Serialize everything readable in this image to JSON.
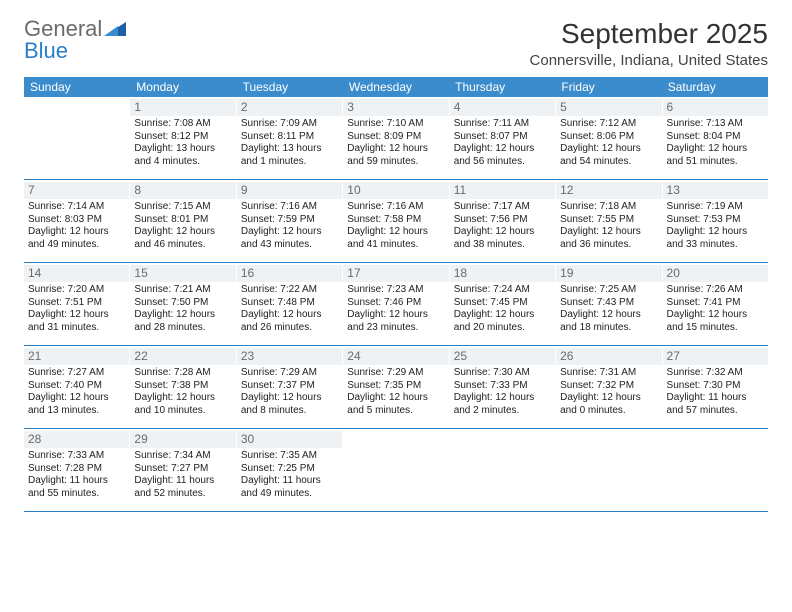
{
  "brand": {
    "part1": "General",
    "part2": "Blue"
  },
  "title": "September 2025",
  "location": "Connersville, Indiana, United States",
  "colors": {
    "header_bg": "#3b8ccc",
    "header_text": "#ffffff",
    "divider": "#2a7fc9",
    "daynum_bg": "#eef2f5",
    "daynum_text": "#6a6a6a",
    "body_text": "#222222",
    "title_text": "#333333",
    "logo_gray": "#6b6b6b",
    "logo_blue": "#2a7fc9"
  },
  "days_of_week": [
    "Sunday",
    "Monday",
    "Tuesday",
    "Wednesday",
    "Thursday",
    "Friday",
    "Saturday"
  ],
  "weeks": [
    [
      null,
      {
        "n": "1",
        "sr": "Sunrise: 7:08 AM",
        "ss": "Sunset: 8:12 PM",
        "d1": "Daylight: 13 hours",
        "d2": "and 4 minutes."
      },
      {
        "n": "2",
        "sr": "Sunrise: 7:09 AM",
        "ss": "Sunset: 8:11 PM",
        "d1": "Daylight: 13 hours",
        "d2": "and 1 minutes."
      },
      {
        "n": "3",
        "sr": "Sunrise: 7:10 AM",
        "ss": "Sunset: 8:09 PM",
        "d1": "Daylight: 12 hours",
        "d2": "and 59 minutes."
      },
      {
        "n": "4",
        "sr": "Sunrise: 7:11 AM",
        "ss": "Sunset: 8:07 PM",
        "d1": "Daylight: 12 hours",
        "d2": "and 56 minutes."
      },
      {
        "n": "5",
        "sr": "Sunrise: 7:12 AM",
        "ss": "Sunset: 8:06 PM",
        "d1": "Daylight: 12 hours",
        "d2": "and 54 minutes."
      },
      {
        "n": "6",
        "sr": "Sunrise: 7:13 AM",
        "ss": "Sunset: 8:04 PM",
        "d1": "Daylight: 12 hours",
        "d2": "and 51 minutes."
      }
    ],
    [
      {
        "n": "7",
        "sr": "Sunrise: 7:14 AM",
        "ss": "Sunset: 8:03 PM",
        "d1": "Daylight: 12 hours",
        "d2": "and 49 minutes."
      },
      {
        "n": "8",
        "sr": "Sunrise: 7:15 AM",
        "ss": "Sunset: 8:01 PM",
        "d1": "Daylight: 12 hours",
        "d2": "and 46 minutes."
      },
      {
        "n": "9",
        "sr": "Sunrise: 7:16 AM",
        "ss": "Sunset: 7:59 PM",
        "d1": "Daylight: 12 hours",
        "d2": "and 43 minutes."
      },
      {
        "n": "10",
        "sr": "Sunrise: 7:16 AM",
        "ss": "Sunset: 7:58 PM",
        "d1": "Daylight: 12 hours",
        "d2": "and 41 minutes."
      },
      {
        "n": "11",
        "sr": "Sunrise: 7:17 AM",
        "ss": "Sunset: 7:56 PM",
        "d1": "Daylight: 12 hours",
        "d2": "and 38 minutes."
      },
      {
        "n": "12",
        "sr": "Sunrise: 7:18 AM",
        "ss": "Sunset: 7:55 PM",
        "d1": "Daylight: 12 hours",
        "d2": "and 36 minutes."
      },
      {
        "n": "13",
        "sr": "Sunrise: 7:19 AM",
        "ss": "Sunset: 7:53 PM",
        "d1": "Daylight: 12 hours",
        "d2": "and 33 minutes."
      }
    ],
    [
      {
        "n": "14",
        "sr": "Sunrise: 7:20 AM",
        "ss": "Sunset: 7:51 PM",
        "d1": "Daylight: 12 hours",
        "d2": "and 31 minutes."
      },
      {
        "n": "15",
        "sr": "Sunrise: 7:21 AM",
        "ss": "Sunset: 7:50 PM",
        "d1": "Daylight: 12 hours",
        "d2": "and 28 minutes."
      },
      {
        "n": "16",
        "sr": "Sunrise: 7:22 AM",
        "ss": "Sunset: 7:48 PM",
        "d1": "Daylight: 12 hours",
        "d2": "and 26 minutes."
      },
      {
        "n": "17",
        "sr": "Sunrise: 7:23 AM",
        "ss": "Sunset: 7:46 PM",
        "d1": "Daylight: 12 hours",
        "d2": "and 23 minutes."
      },
      {
        "n": "18",
        "sr": "Sunrise: 7:24 AM",
        "ss": "Sunset: 7:45 PM",
        "d1": "Daylight: 12 hours",
        "d2": "and 20 minutes."
      },
      {
        "n": "19",
        "sr": "Sunrise: 7:25 AM",
        "ss": "Sunset: 7:43 PM",
        "d1": "Daylight: 12 hours",
        "d2": "and 18 minutes."
      },
      {
        "n": "20",
        "sr": "Sunrise: 7:26 AM",
        "ss": "Sunset: 7:41 PM",
        "d1": "Daylight: 12 hours",
        "d2": "and 15 minutes."
      }
    ],
    [
      {
        "n": "21",
        "sr": "Sunrise: 7:27 AM",
        "ss": "Sunset: 7:40 PM",
        "d1": "Daylight: 12 hours",
        "d2": "and 13 minutes."
      },
      {
        "n": "22",
        "sr": "Sunrise: 7:28 AM",
        "ss": "Sunset: 7:38 PM",
        "d1": "Daylight: 12 hours",
        "d2": "and 10 minutes."
      },
      {
        "n": "23",
        "sr": "Sunrise: 7:29 AM",
        "ss": "Sunset: 7:37 PM",
        "d1": "Daylight: 12 hours",
        "d2": "and 8 minutes."
      },
      {
        "n": "24",
        "sr": "Sunrise: 7:29 AM",
        "ss": "Sunset: 7:35 PM",
        "d1": "Daylight: 12 hours",
        "d2": "and 5 minutes."
      },
      {
        "n": "25",
        "sr": "Sunrise: 7:30 AM",
        "ss": "Sunset: 7:33 PM",
        "d1": "Daylight: 12 hours",
        "d2": "and 2 minutes."
      },
      {
        "n": "26",
        "sr": "Sunrise: 7:31 AM",
        "ss": "Sunset: 7:32 PM",
        "d1": "Daylight: 12 hours",
        "d2": "and 0 minutes."
      },
      {
        "n": "27",
        "sr": "Sunrise: 7:32 AM",
        "ss": "Sunset: 7:30 PM",
        "d1": "Daylight: 11 hours",
        "d2": "and 57 minutes."
      }
    ],
    [
      {
        "n": "28",
        "sr": "Sunrise: 7:33 AM",
        "ss": "Sunset: 7:28 PM",
        "d1": "Daylight: 11 hours",
        "d2": "and 55 minutes."
      },
      {
        "n": "29",
        "sr": "Sunrise: 7:34 AM",
        "ss": "Sunset: 7:27 PM",
        "d1": "Daylight: 11 hours",
        "d2": "and 52 minutes."
      },
      {
        "n": "30",
        "sr": "Sunrise: 7:35 AM",
        "ss": "Sunset: 7:25 PM",
        "d1": "Daylight: 11 hours",
        "d2": "and 49 minutes."
      },
      null,
      null,
      null,
      null
    ]
  ]
}
